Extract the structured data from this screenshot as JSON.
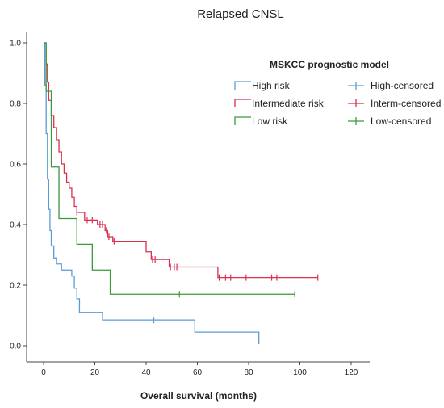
{
  "chart_data": {
    "type": "line",
    "title": "Relapsed CNSL",
    "xlabel": "Overall survival (months)",
    "ylabel": "",
    "xlim": [
      0,
      120
    ],
    "ylim": [
      0,
      1.0
    ],
    "xticks": [
      "0",
      "20",
      "40",
      "60",
      "80",
      "100",
      "120"
    ],
    "yticks": [
      "0.0",
      "0.2",
      "0.4",
      "0.6",
      "0.8",
      "1.0"
    ],
    "grid": false,
    "legend": {
      "title": "MSKCC prognostic model",
      "position": "top-right",
      "entries": [
        {
          "label": "High risk",
          "series": "High risk",
          "kind": "line"
        },
        {
          "label": "High-censored",
          "series": "High risk",
          "kind": "censor"
        },
        {
          "label": "Intermediate risk",
          "series": "Intermediate risk",
          "kind": "line"
        },
        {
          "label": "Interm-censored",
          "series": "Intermediate risk",
          "kind": "censor"
        },
        {
          "label": "Low risk",
          "series": "Low risk",
          "kind": "line"
        },
        {
          "label": "Low-censored",
          "series": "Low risk",
          "kind": "censor"
        }
      ]
    },
    "series": [
      {
        "name": "High risk",
        "color": "#5b9bd5",
        "steps": [
          [
            0,
            1.0
          ],
          [
            0.5,
            0.86
          ],
          [
            1,
            0.7
          ],
          [
            1.5,
            0.55
          ],
          [
            2,
            0.45
          ],
          [
            2.5,
            0.38
          ],
          [
            3,
            0.33
          ],
          [
            4,
            0.29
          ],
          [
            5,
            0.27
          ],
          [
            7,
            0.25
          ],
          [
            11,
            0.23
          ],
          [
            12,
            0.19
          ],
          [
            13,
            0.155
          ],
          [
            14,
            0.11
          ],
          [
            23,
            0.085
          ],
          [
            59,
            0.045
          ],
          [
            84,
            0.005
          ]
        ],
        "end": 84,
        "censored": [
          [
            43,
            0.085
          ]
        ]
      },
      {
        "name": "Intermediate risk",
        "color": "#d9304f",
        "steps": [
          [
            0,
            1.0
          ],
          [
            1,
            0.93
          ],
          [
            1.5,
            0.87
          ],
          [
            2,
            0.81
          ],
          [
            3,
            0.76
          ],
          [
            4,
            0.72
          ],
          [
            5,
            0.68
          ],
          [
            6,
            0.64
          ],
          [
            7,
            0.6
          ],
          [
            8,
            0.57
          ],
          [
            9,
            0.54
          ],
          [
            10,
            0.52
          ],
          [
            11,
            0.49
          ],
          [
            12,
            0.46
          ],
          [
            13,
            0.44
          ],
          [
            16,
            0.415
          ],
          [
            21,
            0.4
          ],
          [
            24,
            0.38
          ],
          [
            25,
            0.36
          ],
          [
            27,
            0.345
          ],
          [
            40,
            0.31
          ],
          [
            42,
            0.285
          ],
          [
            49,
            0.26
          ],
          [
            68,
            0.225
          ]
        ],
        "end": 107,
        "censored": [
          [
            13,
            0.44
          ],
          [
            17,
            0.415
          ],
          [
            19,
            0.415
          ],
          [
            22,
            0.4
          ],
          [
            23,
            0.4
          ],
          [
            24.5,
            0.38
          ],
          [
            25.5,
            0.36
          ],
          [
            27.5,
            0.345
          ],
          [
            42.5,
            0.285
          ],
          [
            43.5,
            0.285
          ],
          [
            49.5,
            0.26
          ],
          [
            51,
            0.26
          ],
          [
            52,
            0.26
          ],
          [
            68.5,
            0.225
          ],
          [
            71,
            0.225
          ],
          [
            73,
            0.225
          ],
          [
            79,
            0.225
          ],
          [
            89,
            0.225
          ],
          [
            91,
            0.225
          ],
          [
            107,
            0.225
          ]
        ]
      },
      {
        "name": "Low risk",
        "color": "#3a9a3a",
        "steps": [
          [
            0,
            1.0
          ],
          [
            1,
            0.84
          ],
          [
            3,
            0.59
          ],
          [
            6,
            0.42
          ],
          [
            13,
            0.335
          ],
          [
            19,
            0.25
          ],
          [
            26,
            0.17
          ]
        ],
        "end": 98,
        "censored": [
          [
            53,
            0.17
          ],
          [
            98,
            0.17
          ]
        ]
      }
    ]
  }
}
